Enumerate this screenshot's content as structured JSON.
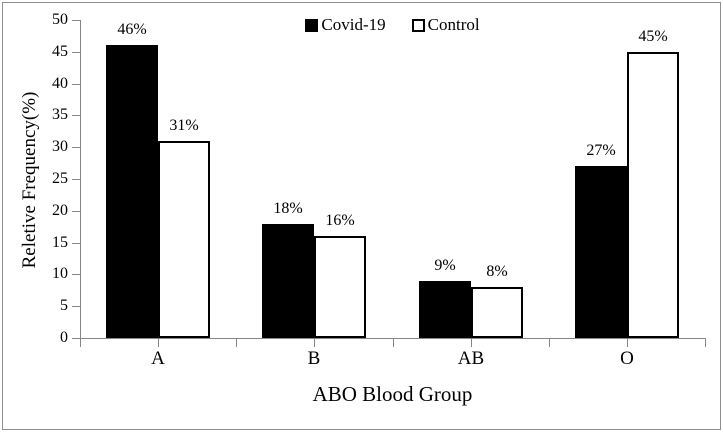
{
  "chart_data": {
    "type": "bar",
    "title": "",
    "categories": [
      "A",
      "B",
      "AB",
      "O"
    ],
    "series": [
      {
        "name": "Covid-19",
        "fill": "#000000",
        "outline": "#000000",
        "values": [
          46,
          18,
          9,
          27
        ],
        "value_labels": [
          "46%",
          "18%",
          "9%",
          "27%"
        ]
      },
      {
        "name": "Control",
        "fill": "#ffffff",
        "outline": "#000000",
        "values": [
          31,
          16,
          8,
          45
        ],
        "value_labels": [
          "31%",
          "16%",
          "8%",
          "45%"
        ]
      }
    ],
    "xlabel": "ABO Blood Group",
    "ylabel": "Reletive Frequency(%)",
    "ylim": [
      0,
      50
    ],
    "ytick_step": 5,
    "yticks": [
      0,
      5,
      10,
      15,
      20,
      25,
      30,
      35,
      40,
      45,
      50
    ],
    "grid": false,
    "legend_position": "top-center",
    "axis_color": "#868686",
    "frame_color": "#8f8f8f",
    "text_color": "#000000"
  }
}
